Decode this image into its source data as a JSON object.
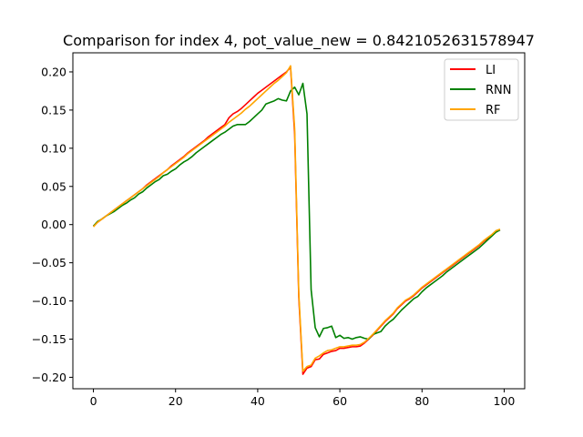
{
  "chart_data": {
    "type": "line",
    "title": "Comparison for index 4, pot_value_new = 0.8421052631578947",
    "xlabel": "",
    "ylabel": "",
    "xlim": [
      -5,
      105
    ],
    "ylim": [
      -0.215,
      0.225
    ],
    "x_ticks": [
      0,
      20,
      40,
      60,
      80,
      100
    ],
    "x_tick_labels": [
      "0",
      "20",
      "40",
      "60",
      "80",
      "100"
    ],
    "y_ticks": [
      0.2,
      0.15,
      0.1,
      0.05,
      0.0,
      -0.05,
      -0.1,
      -0.15,
      -0.2
    ],
    "y_tick_labels": [
      "0.20",
      "0.15",
      "0.10",
      "0.05",
      "0.00",
      "−0.05",
      "−0.10",
      "−0.15",
      "−0.20"
    ],
    "grid": false,
    "legend_position": "top-right",
    "x": [
      0,
      1,
      2,
      3,
      4,
      5,
      6,
      7,
      8,
      9,
      10,
      11,
      12,
      13,
      14,
      15,
      16,
      17,
      18,
      19,
      20,
      21,
      22,
      23,
      24,
      25,
      26,
      27,
      28,
      29,
      30,
      31,
      32,
      33,
      34,
      35,
      36,
      37,
      38,
      39,
      40,
      41,
      42,
      43,
      44,
      45,
      46,
      47,
      48,
      49,
      50,
      51,
      52,
      53,
      54,
      55,
      56,
      57,
      58,
      59,
      60,
      61,
      62,
      63,
      64,
      65,
      66,
      67,
      68,
      69,
      70,
      71,
      72,
      73,
      74,
      75,
      76,
      77,
      78,
      79,
      80,
      81,
      82,
      83,
      84,
      85,
      86,
      87,
      88,
      89,
      90,
      91,
      92,
      93,
      94,
      95,
      96,
      97,
      98,
      99
    ],
    "series": [
      {
        "name": "LI",
        "color": "#ff0000",
        "values": [
          -0.002,
          0.003,
          0.007,
          0.011,
          0.015,
          0.019,
          0.023,
          0.027,
          0.031,
          0.035,
          0.039,
          0.043,
          0.047,
          0.052,
          0.056,
          0.06,
          0.064,
          0.068,
          0.072,
          0.077,
          0.081,
          0.085,
          0.089,
          0.094,
          0.098,
          0.102,
          0.106,
          0.11,
          0.115,
          0.119,
          0.123,
          0.127,
          0.131,
          0.14,
          0.145,
          0.148,
          0.152,
          0.157,
          0.162,
          0.167,
          0.172,
          0.176,
          0.18,
          0.184,
          0.188,
          0.192,
          0.196,
          0.2,
          0.206,
          0.118,
          -0.095,
          -0.196,
          -0.188,
          -0.186,
          -0.177,
          -0.176,
          -0.17,
          -0.168,
          -0.166,
          -0.165,
          -0.162,
          -0.162,
          -0.161,
          -0.16,
          -0.16,
          -0.159,
          -0.155,
          -0.15,
          -0.145,
          -0.139,
          -0.133,
          -0.127,
          -0.122,
          -0.117,
          -0.11,
          -0.105,
          -0.1,
          -0.097,
          -0.093,
          -0.088,
          -0.083,
          -0.079,
          -0.075,
          -0.071,
          -0.067,
          -0.063,
          -0.059,
          -0.055,
          -0.051,
          -0.047,
          -0.043,
          -0.039,
          -0.035,
          -0.031,
          -0.027,
          -0.022,
          -0.018,
          -0.014,
          -0.009,
          -0.007
        ]
      },
      {
        "name": "RNN",
        "color": "#008000",
        "values": [
          -0.002,
          0.004,
          0.007,
          0.011,
          0.014,
          0.017,
          0.021,
          0.025,
          0.028,
          0.032,
          0.035,
          0.04,
          0.043,
          0.048,
          0.052,
          0.056,
          0.059,
          0.064,
          0.066,
          0.07,
          0.073,
          0.078,
          0.082,
          0.085,
          0.089,
          0.094,
          0.098,
          0.102,
          0.106,
          0.11,
          0.114,
          0.118,
          0.121,
          0.125,
          0.129,
          0.131,
          0.131,
          0.131,
          0.135,
          0.14,
          0.145,
          0.15,
          0.158,
          0.16,
          0.162,
          0.165,
          0.163,
          0.162,
          0.175,
          0.18,
          0.17,
          0.185,
          0.145,
          -0.085,
          -0.135,
          -0.147,
          -0.136,
          -0.135,
          -0.133,
          -0.148,
          -0.145,
          -0.149,
          -0.148,
          -0.15,
          -0.148,
          -0.147,
          -0.149,
          -0.15,
          -0.144,
          -0.142,
          -0.14,
          -0.133,
          -0.128,
          -0.124,
          -0.118,
          -0.112,
          -0.107,
          -0.102,
          -0.097,
          -0.094,
          -0.088,
          -0.083,
          -0.079,
          -0.075,
          -0.071,
          -0.067,
          -0.062,
          -0.058,
          -0.054,
          -0.05,
          -0.046,
          -0.042,
          -0.038,
          -0.034,
          -0.03,
          -0.025,
          -0.02,
          -0.015,
          -0.01,
          -0.007
        ]
      },
      {
        "name": "RF",
        "color": "#ffa500",
        "values": [
          -0.003,
          0.003,
          0.007,
          0.011,
          0.015,
          0.019,
          0.023,
          0.027,
          0.031,
          0.035,
          0.039,
          0.043,
          0.047,
          0.051,
          0.055,
          0.059,
          0.063,
          0.068,
          0.072,
          0.076,
          0.08,
          0.084,
          0.088,
          0.093,
          0.097,
          0.101,
          0.105,
          0.109,
          0.113,
          0.117,
          0.121,
          0.125,
          0.129,
          0.134,
          0.138,
          0.142,
          0.146,
          0.151,
          0.155,
          0.16,
          0.165,
          0.17,
          0.175,
          0.18,
          0.185,
          0.189,
          0.194,
          0.199,
          0.208,
          0.125,
          -0.09,
          -0.192,
          -0.186,
          -0.184,
          -0.175,
          -0.172,
          -0.168,
          -0.165,
          -0.164,
          -0.162,
          -0.16,
          -0.16,
          -0.159,
          -0.158,
          -0.158,
          -0.157,
          -0.154,
          -0.149,
          -0.144,
          -0.138,
          -0.132,
          -0.126,
          -0.121,
          -0.116,
          -0.109,
          -0.104,
          -0.099,
          -0.096,
          -0.092,
          -0.087,
          -0.082,
          -0.078,
          -0.074,
          -0.07,
          -0.066,
          -0.062,
          -0.058,
          -0.054,
          -0.05,
          -0.046,
          -0.042,
          -0.038,
          -0.034,
          -0.03,
          -0.026,
          -0.021,
          -0.017,
          -0.013,
          -0.008,
          -0.006
        ]
      }
    ]
  }
}
